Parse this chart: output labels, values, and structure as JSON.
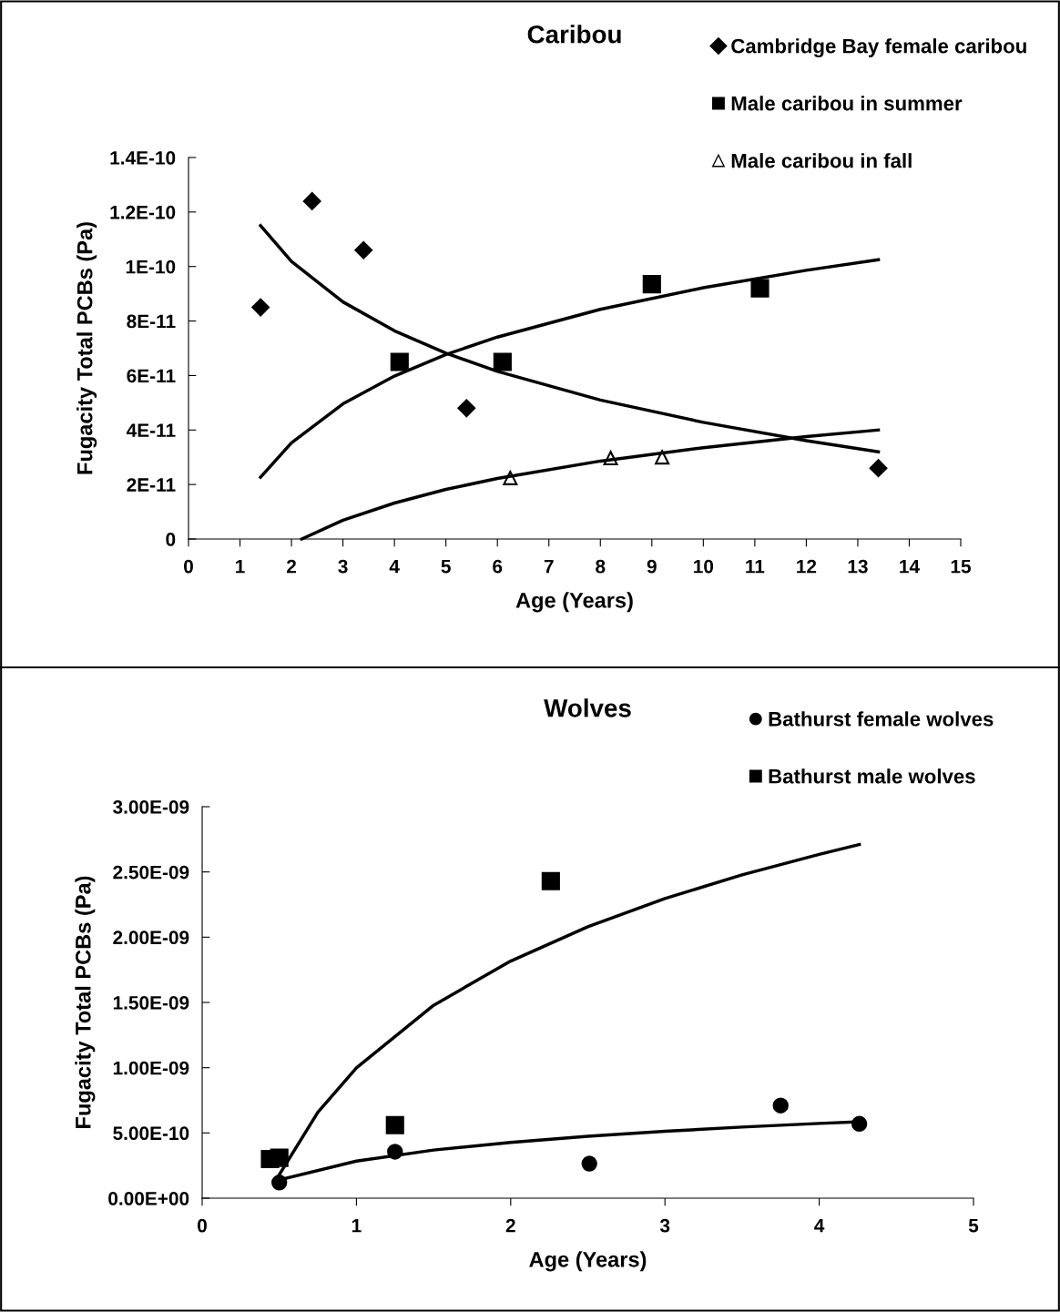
{
  "chart_data": [
    {
      "type": "scatter",
      "title": "Caribou",
      "xlabel": "Age (Years)",
      "ylabel": "Fugacity Total PCBs (Pa)",
      "legend": "top right",
      "grid": false,
      "xlim": [
        0,
        15
      ],
      "xticks": [
        0,
        1,
        2,
        3,
        4,
        5,
        6,
        7,
        8,
        9,
        10,
        11,
        12,
        13,
        14,
        15
      ],
      "ylim": [
        0,
        1.4e-10
      ],
      "yticks": [
        {
          "value": 0,
          "label": "0"
        },
        {
          "value": 2e-11,
          "label": "2E-11"
        },
        {
          "value": 4e-11,
          "label": "4E-11"
        },
        {
          "value": 6e-11,
          "label": "6E-11"
        },
        {
          "value": 8e-11,
          "label": "8E-11"
        },
        {
          "value": 1e-10,
          "label": "1E-10"
        },
        {
          "value": 1.2e-10,
          "label": "1.2E-10"
        },
        {
          "value": 1.4e-10,
          "label": "1.4E-10"
        }
      ],
      "series": [
        {
          "name": "Cambridge Bay female caribou",
          "color": "#000000",
          "marker": "diamond",
          "x": [
            1.4,
            2.4,
            3.4,
            5.4,
            13.4
          ],
          "values": [
            8.5e-11,
            1.24e-10,
            1.06e-10,
            4.8e-11,
            2.6e-11
          ]
        },
        {
          "name": "Male caribou in summer",
          "color": "#000000",
          "marker": "square",
          "x": [
            4.1,
            6.1,
            9.0,
            11.1
          ],
          "values": [
            6.5e-11,
            6.5e-11,
            9.35e-11,
            9.2e-11
          ]
        },
        {
          "name": "Male caribou in fall",
          "color": "#000000",
          "marker": "triangle",
          "x": [
            6.25,
            8.2,
            9.2
          ],
          "values": [
            2.24e-11,
            2.97e-11,
            3e-11
          ]
        },
        {
          "type": "line",
          "color": "#000000",
          "marker": "none",
          "x": [
            1.4,
            2,
            3,
            4,
            5,
            6,
            8,
            10,
            12,
            13.4
          ],
          "values": [
            1.15e-10,
            1.019e-10,
            8.7e-11,
            7.64e-11,
            6.82e-11,
            6.15e-11,
            5.1e-11,
            4.28e-11,
            3.61e-11,
            3.2e-11
          ]
        },
        {
          "type": "line",
          "color": "#000000",
          "marker": "none",
          "x": [
            1.4,
            2,
            3,
            4,
            5,
            6,
            8,
            10,
            12,
            13.4
          ],
          "values": [
            2.27e-11,
            3.53e-11,
            4.96e-11,
            5.98e-11,
            6.77e-11,
            7.41e-11,
            8.43e-11,
            9.22e-11,
            9.86e-11,
            1.025e-10
          ]
        },
        {
          "type": "line",
          "color": "#000000",
          "marker": "none",
          "x": [
            2.2,
            3,
            4,
            5,
            6,
            8,
            10,
            12,
            13.4
          ],
          "values": [
            0,
            6.9e-12,
            1.32e-11,
            1.82e-11,
            2.22e-11,
            2.86e-11,
            3.35e-11,
            3.76e-11,
            4e-11
          ]
        }
      ]
    },
    {
      "type": "scatter",
      "title": "Wolves",
      "xlabel": "Age (Years)",
      "ylabel": "Fugacity Total PCBs (Pa)",
      "legend": "top right",
      "grid": false,
      "xlim": [
        0,
        5
      ],
      "xticks": [
        0,
        1,
        2,
        3,
        4,
        5
      ],
      "ylim": [
        0,
        3e-09
      ],
      "yticks": [
        {
          "value": 0,
          "label": "0.00E+00"
        },
        {
          "value": 5e-10,
          "label": "5.00E-10"
        },
        {
          "value": 1e-09,
          "label": "1.00E-09"
        },
        {
          "value": 1.5e-09,
          "label": "1.50E-09"
        },
        {
          "value": 2e-09,
          "label": "2.00E-09"
        },
        {
          "value": 2.5e-09,
          "label": "2.50E-09"
        },
        {
          "value": 3e-09,
          "label": "3.00E-09"
        }
      ],
      "series": [
        {
          "name": "Bathurst female wolves",
          "color": "#000000",
          "marker": "circle",
          "x": [
            0.5,
            1.25,
            2.51,
            3.75,
            4.26
          ],
          "values": [
            1.2e-10,
            3.56e-10,
            2.65e-10,
            7.1e-10,
            5.7e-10
          ]
        },
        {
          "name": "Bathurst male wolves",
          "color": "#000000",
          "marker": "square",
          "x": [
            0.44,
            0.5,
            1.25,
            2.26
          ],
          "values": [
            3e-10,
            3.1e-10,
            5.6e-10,
            2.43e-09
          ]
        },
        {
          "type": "line",
          "color": "#000000",
          "marker": "none",
          "x": [
            0.5,
            1,
            1.5,
            2,
            2.5,
            3,
            3.5,
            4,
            4.26
          ],
          "values": [
            1.4e-10,
            2.84e-10,
            3.69e-10,
            4.28e-10,
            4.75e-10,
            5.13e-10,
            5.45e-10,
            5.73e-10,
            5.86e-10
          ]
        },
        {
          "type": "line",
          "color": "#000000",
          "marker": "none",
          "x": [
            0.5,
            0.75,
            1,
            1.5,
            2,
            2.5,
            3,
            3.5,
            4,
            4.26
          ],
          "values": [
            1.8e-10,
            6.59e-10,
            9.99e-10,
            1.478e-09,
            1.817e-09,
            2.08e-09,
            2.296e-09,
            2.478e-09,
            2.635e-09,
            2.71e-09
          ]
        }
      ]
    }
  ]
}
